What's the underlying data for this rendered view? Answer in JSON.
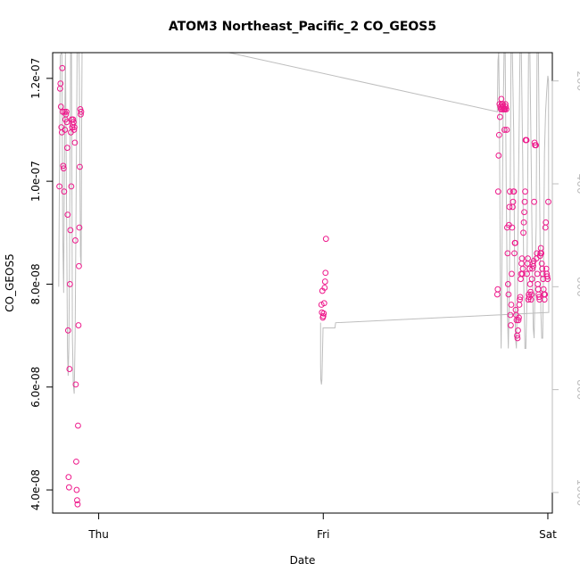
{
  "chart_data": {
    "type": "scatter",
    "title": "ATOM3 Northeast_Pacific_2 CO_GEOS5",
    "xlabel": "Date",
    "ylabel": "CO_GEOS5",
    "xlim": [
      -0.205,
      2.02
    ],
    "ylim": [
      3.55e-08,
      1.25e-07
    ],
    "x_ticks": [
      {
        "value": 0,
        "label": "Thu"
      },
      {
        "value": 1,
        "label": "Fri"
      },
      {
        "value": 2,
        "label": "Sat"
      }
    ],
    "y_ticks": [
      {
        "value": 4e-08,
        "label": "4.0e-08"
      },
      {
        "value": 6e-08,
        "label": "6.0e-08"
      },
      {
        "value": 8e-08,
        "label": "8.0e-08"
      },
      {
        "value": 1e-07,
        "label": "1.0e-07"
      },
      {
        "value": 1.2e-07,
        "label": "1.2e-07"
      }
    ],
    "y2_range": [
      1040,
      145
    ],
    "y2_ticks": [
      {
        "value": 200,
        "label": "200"
      },
      {
        "value": 400,
        "label": "400"
      },
      {
        "value": 600,
        "label": "600"
      },
      {
        "value": 800,
        "label": "800"
      },
      {
        "value": 1000,
        "label": "1000"
      }
    ],
    "marker_color": "#ee1a8c",
    "line_color": "#bebebe",
    "grid": false,
    "series": [
      {
        "marker": "circle",
        "points": [
          [
            -0.175,
            9.9e-08
          ],
          [
            -0.172,
            1.18e-07
          ],
          [
            -0.17,
            1.19e-07
          ],
          [
            -0.168,
            1.145e-07
          ],
          [
            -0.166,
            1.105e-07
          ],
          [
            -0.164,
            1.095e-07
          ],
          [
            -0.162,
            1.22e-07
          ],
          [
            -0.16,
            1.135e-07
          ],
          [
            -0.158,
            1.03e-07
          ],
          [
            -0.156,
            1.025e-07
          ],
          [
            -0.154,
            9.8e-08
          ],
          [
            -0.152,
            1.135e-07
          ],
          [
            -0.15,
            1.1e-07
          ],
          [
            -0.148,
            1.12e-07
          ],
          [
            -0.146,
            1.13e-07
          ],
          [
            -0.144,
            1.135e-07
          ],
          [
            -0.142,
            1.115e-07
          ],
          [
            -0.14,
            1.065e-07
          ],
          [
            -0.138,
            9.35e-08
          ],
          [
            -0.136,
            7.1e-08
          ],
          [
            -0.134,
            4.25e-08
          ],
          [
            -0.132,
            4.05e-08
          ],
          [
            -0.13,
            6.35e-08
          ],
          [
            -0.128,
            8e-08
          ],
          [
            -0.126,
            9.05e-08
          ],
          [
            -0.124,
            1.095e-07
          ],
          [
            -0.122,
            9.9e-08
          ],
          [
            -0.12,
            1.12e-07
          ],
          [
            -0.118,
            1.105e-07
          ],
          [
            -0.116,
            1.11e-07
          ],
          [
            -0.114,
            1.12e-07
          ],
          [
            -0.112,
            1.115e-07
          ],
          [
            -0.11,
            1.1e-07
          ],
          [
            -0.108,
            1.105e-07
          ],
          [
            -0.106,
            1.075e-07
          ],
          [
            -0.104,
            8.85e-08
          ],
          [
            -0.102,
            6.05e-08
          ],
          [
            -0.1,
            4.55e-08
          ],
          [
            -0.098,
            4e-08
          ],
          [
            -0.096,
            3.8e-08
          ],
          [
            -0.094,
            3.72e-08
          ],
          [
            -0.092,
            5.25e-08
          ],
          [
            -0.09,
            7.2e-08
          ],
          [
            -0.088,
            8.35e-08
          ],
          [
            -0.086,
            9.1e-08
          ],
          [
            -0.084,
            1.028e-07
          ],
          [
            -0.082,
            1.14e-07
          ],
          [
            -0.08,
            1.13e-07
          ],
          [
            -0.078,
            1.135e-07
          ],
          [
            0.992,
            7.6e-08
          ],
          [
            0.994,
            7.45e-08
          ],
          [
            0.996,
            7.87e-08
          ],
          [
            0.998,
            7.35e-08
          ],
          [
            1.0,
            7.38e-08
          ],
          [
            1.002,
            7.43e-08
          ],
          [
            1.004,
            7.63e-08
          ],
          [
            1.006,
            7.93e-08
          ],
          [
            1.008,
            8.05e-08
          ],
          [
            1.01,
            8.22e-08
          ],
          [
            1.012,
            8.88e-08
          ],
          [
            1.775,
            7.8e-08
          ],
          [
            1.777,
            7.9e-08
          ],
          [
            1.779,
            9.8e-08
          ],
          [
            1.781,
            1.05e-07
          ],
          [
            1.783,
            1.09e-07
          ],
          [
            1.785,
            1.15e-07
          ],
          [
            1.787,
            1.125e-07
          ],
          [
            1.789,
            1.145e-07
          ],
          [
            1.791,
            1.14e-07
          ],
          [
            1.793,
            1.16e-07
          ],
          [
            1.795,
            1.15e-07
          ],
          [
            1.797,
            1.14e-07
          ],
          [
            1.799,
            1.15e-07
          ],
          [
            1.801,
            1.145e-07
          ],
          [
            1.803,
            1.14e-07
          ],
          [
            1.805,
            1.14e-07
          ],
          [
            1.807,
            1.1e-07
          ],
          [
            1.809,
            1.14e-07
          ],
          [
            1.811,
            1.15e-07
          ],
          [
            1.813,
            1.145e-07
          ],
          [
            1.815,
            1.14e-07
          ],
          [
            1.817,
            1.1e-07
          ],
          [
            1.819,
            9.1e-08
          ],
          [
            1.821,
            8.6e-08
          ],
          [
            1.823,
            8e-08
          ],
          [
            1.825,
            7.8e-08
          ],
          [
            1.827,
            9.15e-08
          ],
          [
            1.829,
            9.5e-08
          ],
          [
            1.831,
            9.8e-08
          ],
          [
            1.833,
            7.4e-08
          ],
          [
            1.835,
            7.2e-08
          ],
          [
            1.837,
            7.6e-08
          ],
          [
            1.839,
            8.2e-08
          ],
          [
            1.841,
            9.1e-08
          ],
          [
            1.843,
            9.5e-08
          ],
          [
            1.845,
            9.6e-08
          ],
          [
            1.847,
            9.8e-08
          ],
          [
            1.849,
            9.8e-08
          ],
          [
            1.851,
            8.6e-08
          ],
          [
            1.853,
            8.8e-08
          ],
          [
            1.855,
            8.8e-08
          ],
          [
            1.857,
            7.5e-08
          ],
          [
            1.859,
            7.4e-08
          ],
          [
            1.861,
            7.3e-08
          ],
          [
            1.863,
            7e-08
          ],
          [
            1.865,
            6.95e-08
          ],
          [
            1.867,
            7.1e-08
          ],
          [
            1.869,
            7.3e-08
          ],
          [
            1.871,
            7.35e-08
          ],
          [
            1.873,
            7.6e-08
          ],
          [
            1.875,
            7.7e-08
          ],
          [
            1.877,
            7.75e-08
          ],
          [
            1.879,
            8.1e-08
          ],
          [
            1.881,
            8.2e-08
          ],
          [
            1.883,
            8.4e-08
          ],
          [
            1.885,
            8.5e-08
          ],
          [
            1.887,
            8.2e-08
          ],
          [
            1.889,
            8.3e-08
          ],
          [
            1.891,
            9e-08
          ],
          [
            1.893,
            9.2e-08
          ],
          [
            1.895,
            9.4e-08
          ],
          [
            1.897,
            9.6e-08
          ],
          [
            1.899,
            9.8e-08
          ],
          [
            1.901,
            1.08e-07
          ],
          [
            1.903,
            1.08e-07
          ],
          [
            1.905,
            1.08e-07
          ],
          [
            1.907,
            8.2e-08
          ],
          [
            1.909,
            8.4e-08
          ],
          [
            1.911,
            8.5e-08
          ],
          [
            1.913,
            7.7e-08
          ],
          [
            1.915,
            7.8e-08
          ],
          [
            1.917,
            7.75e-08
          ],
          [
            1.919,
            8.3e-08
          ],
          [
            1.921,
            8e-08
          ],
          [
            1.923,
            7.85e-08
          ],
          [
            1.925,
            7.7e-08
          ],
          [
            1.927,
            7.8e-08
          ],
          [
            1.929,
            8.1e-08
          ],
          [
            1.931,
            8.3e-08
          ],
          [
            1.933,
            8.4e-08
          ],
          [
            1.935,
            8.35e-08
          ],
          [
            1.937,
            8.45e-08
          ],
          [
            1.939,
            9.6e-08
          ],
          [
            1.941,
            1.075e-07
          ],
          [
            1.943,
            1.07e-07
          ],
          [
            1.945,
            1.07e-07
          ],
          [
            1.947,
            1.07e-07
          ],
          [
            1.949,
            8.5e-08
          ],
          [
            1.951,
            8.6e-08
          ],
          [
            1.953,
            8.2e-08
          ],
          [
            1.955,
            8e-08
          ],
          [
            1.957,
            7.9e-08
          ],
          [
            1.959,
            7.8e-08
          ],
          [
            1.961,
            7.75e-08
          ],
          [
            1.963,
            7.7e-08
          ],
          [
            1.965,
            8.55e-08
          ],
          [
            1.967,
            8.6e-08
          ],
          [
            1.969,
            8.7e-08
          ],
          [
            1.971,
            8.6e-08
          ],
          [
            1.973,
            8.4e-08
          ],
          [
            1.975,
            8.3e-08
          ],
          [
            1.977,
            8.2e-08
          ],
          [
            1.979,
            8.1e-08
          ],
          [
            1.981,
            7.9e-08
          ],
          [
            1.983,
            7.8e-08
          ],
          [
            1.985,
            7.7e-08
          ],
          [
            1.987,
            7.8e-08
          ],
          [
            1.989,
            9.1e-08
          ],
          [
            1.991,
            9.2e-08
          ],
          [
            1.993,
            8.3e-08
          ],
          [
            1.995,
            8.2e-08
          ],
          [
            1.997,
            8.15e-08
          ],
          [
            1.999,
            8.1e-08
          ],
          [
            2.002,
            9.6e-08
          ]
        ]
      },
      {
        "marker": "line",
        "axis": "right",
        "points": [
          [
            -0.178,
            600
          ],
          [
            -0.171,
            150
          ],
          [
            -0.164,
            145
          ],
          [
            -0.16,
            500
          ],
          [
            -0.156,
            612
          ],
          [
            -0.152,
            320
          ],
          [
            -0.148,
            145
          ],
          [
            -0.143,
            450
          ],
          [
            -0.139,
            720
          ],
          [
            -0.136,
            773
          ],
          [
            -0.133,
            720
          ],
          [
            -0.13,
            560
          ],
          [
            -0.127,
            300
          ],
          [
            -0.125,
            145
          ],
          [
            -0.121,
            145
          ],
          [
            -0.117,
            700
          ],
          [
            -0.113,
            790
          ],
          [
            -0.109,
            808
          ],
          [
            -0.105,
            700
          ],
          [
            -0.1,
            400
          ],
          [
            -0.096,
            145
          ],
          [
            -0.092,
            145
          ],
          [
            -0.088,
            145
          ],
          [
            -0.086,
            190
          ],
          [
            -0.083,
            420
          ],
          [
            -0.081,
            540
          ],
          [
            -0.078,
            560
          ],
          [
            -0.076,
            300
          ],
          [
            -0.074,
            145
          ],
          [
            -0.066,
            145
          ],
          [
            0.58,
            145
          ],
          [
            1.775,
            260
          ],
          [
            1.778,
            160
          ],
          [
            1.781,
            145
          ],
          [
            1.784,
            240
          ],
          [
            1.788,
            560
          ],
          [
            1.792,
            720
          ],
          [
            1.796,
            525
          ],
          [
            1.8,
            300
          ],
          [
            1.805,
            145
          ],
          [
            1.81,
            145
          ],
          [
            1.815,
            420
          ],
          [
            1.82,
            650
          ],
          [
            1.824,
            720
          ],
          [
            1.828,
            620
          ],
          [
            1.832,
            450
          ],
          [
            1.836,
            145
          ],
          [
            1.842,
            145
          ],
          [
            1.848,
            300
          ],
          [
            1.852,
            560
          ],
          [
            1.856,
            700
          ],
          [
            1.86,
            720
          ],
          [
            1.864,
            620
          ],
          [
            1.868,
            450
          ],
          [
            1.872,
            300
          ],
          [
            1.876,
            145
          ],
          [
            1.882,
            145
          ],
          [
            1.888,
            350
          ],
          [
            1.893,
            600
          ],
          [
            1.898,
            720
          ],
          [
            1.902,
            720
          ],
          [
            1.906,
            640
          ],
          [
            1.91,
            420
          ],
          [
            1.914,
            145
          ],
          [
            1.92,
            145
          ],
          [
            1.926,
            360
          ],
          [
            1.931,
            560
          ],
          [
            1.935,
            680
          ],
          [
            1.939,
            700
          ],
          [
            1.943,
            590
          ],
          [
            1.948,
            480
          ],
          [
            1.952,
            145
          ],
          [
            1.958,
            145
          ],
          [
            1.964,
            450
          ],
          [
            1.969,
            650
          ],
          [
            1.973,
            700
          ],
          [
            1.977,
            700
          ],
          [
            1.981,
            560
          ],
          [
            1.985,
            340
          ],
          [
            1.99,
            260
          ],
          [
            1.995,
            220
          ],
          [
            2.0,
            190
          ],
          [
            2.003,
            200
          ],
          [
            2.004,
            650
          ],
          [
            1.055,
            670
          ],
          [
            1.052,
            680
          ],
          [
            0.999,
            680
          ],
          [
            0.996,
            740
          ],
          [
            0.994,
            780
          ],
          [
            0.992,
            790
          ],
          [
            0.989,
            780
          ],
          [
            0.988,
            750
          ],
          [
            0.988,
            670
          ]
        ]
      }
    ]
  }
}
